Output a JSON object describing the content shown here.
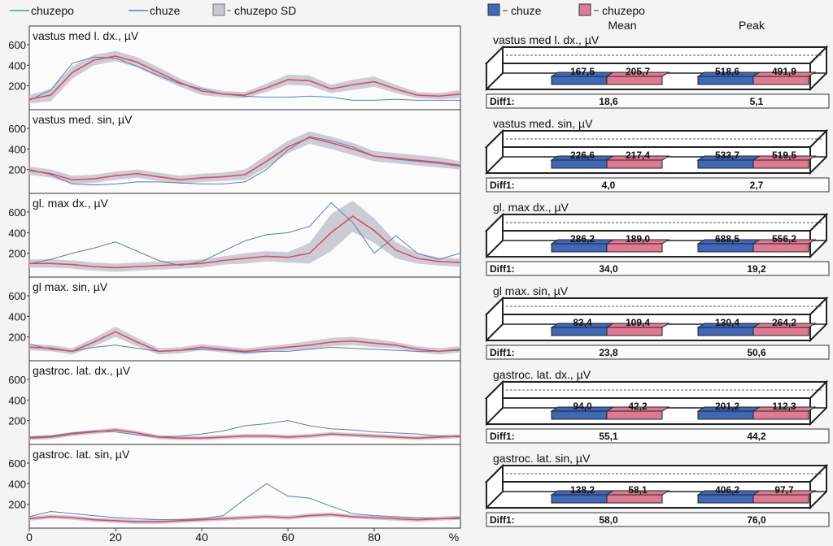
{
  "legend_left": [
    {
      "label": "chuzepo",
      "color": "#3aa67a",
      "kind": "line"
    },
    {
      "label": "chuze",
      "color": "#5a7fa8",
      "kind": "line"
    },
    {
      "label": "chuzepo SD",
      "color": "#c7c7cf",
      "kind": "box"
    }
  ],
  "legend_right": [
    {
      "label": "chuze",
      "color": "#3f68b8"
    },
    {
      "label": "chuzepo",
      "color": "#e07a94"
    }
  ],
  "column_headers": {
    "mean": "Mean",
    "peak": "Peak"
  },
  "x_axis": {
    "ticks": [
      "0",
      "20",
      "40",
      "60",
      "80"
    ],
    "unit": "%"
  },
  "y_ticks": [
    "600",
    "400",
    "200"
  ],
  "colors": {
    "chuze": "#5a7fa8",
    "chuzepo": "#d64f61",
    "sd_band": "#c3c3cc",
    "bar_chuze": "#3f68b8",
    "bar_chuzepo": "#e07a94"
  },
  "chart_data": [
    {
      "type": "line",
      "title": "vastus med l. dx., µV",
      "x": [
        0,
        5,
        10,
        15,
        20,
        25,
        30,
        35,
        40,
        45,
        50,
        55,
        60,
        65,
        70,
        75,
        80,
        85,
        90,
        95,
        100
      ],
      "ylim": [
        0,
        750
      ],
      "series": [
        {
          "name": "chuze",
          "values": [
            60,
            160,
            420,
            480,
            470,
            390,
            300,
            220,
            170,
            120,
            100,
            90,
            90,
            100,
            90,
            60,
            60,
            70,
            60,
            60,
            60
          ]
        },
        {
          "name": "chuzepo",
          "values": [
            70,
            110,
            330,
            450,
            490,
            430,
            330,
            230,
            150,
            120,
            110,
            180,
            260,
            250,
            170,
            210,
            240,
            170,
            110,
            100,
            120
          ]
        }
      ],
      "sd": [
        40,
        60,
        60,
        50,
        50,
        50,
        50,
        40,
        40,
        30,
        30,
        40,
        50,
        50,
        40,
        50,
        50,
        40,
        30,
        30,
        40
      ],
      "summary": {
        "mean_chuze": "167,5",
        "mean_chuzepo": "205,7",
        "peak_chuze": "518,6",
        "peak_chuzepo": "491,9",
        "diff_label": "Diff1:",
        "diff_mean": "18,6",
        "diff_peak": "5,1"
      }
    },
    {
      "type": "line",
      "title": "vastus med. sin, µV",
      "x": [
        0,
        5,
        10,
        15,
        20,
        25,
        30,
        35,
        40,
        45,
        50,
        55,
        60,
        65,
        70,
        75,
        80,
        85,
        90,
        95,
        100
      ],
      "ylim": [
        0,
        750
      ],
      "series": [
        {
          "name": "chuze",
          "values": [
            200,
            150,
            60,
            50,
            60,
            80,
            80,
            70,
            60,
            60,
            80,
            200,
            390,
            520,
            480,
            420,
            330,
            300,
            280,
            260,
            230
          ]
        },
        {
          "name": "chuzepo",
          "values": [
            190,
            160,
            100,
            110,
            140,
            160,
            130,
            100,
            120,
            130,
            150,
            280,
            420,
            510,
            460,
            400,
            330,
            310,
            290,
            270,
            240
          ]
        }
      ],
      "sd": [
        40,
        40,
        40,
        40,
        40,
        40,
        40,
        40,
        40,
        40,
        50,
        60,
        60,
        60,
        60,
        60,
        50,
        50,
        50,
        50,
        40
      ],
      "summary": {
        "mean_chuze": "226,6",
        "mean_chuzepo": "217,4",
        "peak_chuze": "533,7",
        "peak_chuzepo": "519,5",
        "diff_label": "Diff1:",
        "diff_mean": "4,0",
        "diff_peak": "2,7"
      }
    },
    {
      "type": "line",
      "title": "gl. max dx., µV",
      "x": [
        0,
        5,
        10,
        15,
        20,
        25,
        30,
        35,
        40,
        45,
        50,
        55,
        60,
        65,
        70,
        75,
        80,
        85,
        90,
        95,
        100
      ],
      "ylim": [
        0,
        750
      ],
      "series": [
        {
          "name": "chuze",
          "values": [
            100,
            140,
            200,
            250,
            310,
            220,
            130,
            80,
            120,
            220,
            320,
            380,
            400,
            460,
            690,
            500,
            200,
            370,
            200,
            140,
            200
          ]
        },
        {
          "name": "chuzepo",
          "values": [
            100,
            100,
            90,
            70,
            60,
            70,
            80,
            90,
            100,
            130,
            150,
            170,
            160,
            200,
            400,
            560,
            420,
            230,
            150,
            120,
            110
          ]
        }
      ],
      "sd": [
        40,
        40,
        40,
        40,
        40,
        40,
        40,
        40,
        40,
        40,
        50,
        50,
        50,
        100,
        180,
        150,
        120,
        80,
        50,
        40,
        40
      ]
    },
    {
      "type": "line",
      "title": "gl max. sin, µV",
      "x": [
        0,
        5,
        10,
        15,
        20,
        25,
        30,
        35,
        40,
        45,
        50,
        55,
        60,
        65,
        70,
        75,
        80,
        85,
        90,
        95,
        100
      ],
      "ylim": [
        0,
        750
      ],
      "series": [
        {
          "name": "chuze",
          "values": [
            130,
            80,
            60,
            100,
            120,
            90,
            60,
            70,
            80,
            70,
            50,
            60,
            60,
            80,
            100,
            90,
            80,
            70,
            60,
            60,
            70
          ]
        },
        {
          "name": "chuzepo",
          "values": [
            100,
            90,
            60,
            150,
            250,
            150,
            60,
            70,
            100,
            80,
            60,
            80,
            100,
            120,
            150,
            160,
            140,
            120,
            80,
            60,
            80
          ]
        }
      ],
      "sd": [
        30,
        30,
        30,
        40,
        50,
        40,
        30,
        30,
        30,
        30,
        30,
        30,
        30,
        40,
        40,
        40,
        40,
        30,
        30,
        30,
        30
      ],
      "summary": {
        "mean_chuze": "83,4",
        "mean_chuzepo": "109,4",
        "peak_chuze": "130,4",
        "peak_chuzepo": "264,2",
        "diff_label": "Diff1:",
        "diff_mean": "23,8",
        "diff_peak": "50,6"
      }
    },
    {
      "type": "line",
      "title": "gastroc. lat. dx., µV",
      "x": [
        0,
        5,
        10,
        15,
        20,
        25,
        30,
        35,
        40,
        45,
        50,
        55,
        60,
        65,
        70,
        75,
        80,
        85,
        90,
        95,
        100
      ],
      "ylim": [
        0,
        750
      ],
      "series": [
        {
          "name": "chuze",
          "values": [
            40,
            50,
            80,
            100,
            90,
            60,
            40,
            50,
            70,
            100,
            150,
            170,
            200,
            150,
            120,
            110,
            90,
            80,
            70,
            50,
            40
          ]
        },
        {
          "name": "chuzepo",
          "values": [
            30,
            40,
            70,
            90,
            110,
            80,
            40,
            30,
            30,
            40,
            50,
            50,
            40,
            50,
            70,
            60,
            50,
            40,
            30,
            40,
            50
          ]
        }
      ],
      "sd": [
        20,
        20,
        20,
        20,
        20,
        20,
        20,
        20,
        20,
        20,
        20,
        20,
        20,
        20,
        20,
        20,
        20,
        20,
        20,
        20,
        20
      ],
      "summary": {
        "mean_chuze": "94,0",
        "mean_chuzepo": "42,2",
        "peak_chuze": "201,2",
        "peak_chuzepo": "112,3",
        "diff_label": "Diff1:",
        "diff_mean": "55,1",
        "diff_peak": "44,2"
      }
    },
    {
      "type": "line",
      "title": "gastroc. lat. sin, µV",
      "x": [
        0,
        5,
        10,
        15,
        20,
        25,
        30,
        35,
        40,
        45,
        50,
        55,
        60,
        65,
        70,
        75,
        80,
        85,
        90,
        95,
        100
      ],
      "ylim": [
        0,
        750
      ],
      "series": [
        {
          "name": "chuze",
          "values": [
            80,
            130,
            110,
            90,
            70,
            60,
            50,
            50,
            60,
            90,
            250,
            400,
            280,
            260,
            180,
            110,
            90,
            80,
            70,
            60,
            60
          ]
        },
        {
          "name": "chuzepo",
          "values": [
            60,
            80,
            70,
            50,
            40,
            30,
            30,
            40,
            50,
            60,
            70,
            80,
            70,
            90,
            100,
            80,
            70,
            60,
            50,
            60,
            70
          ]
        }
      ],
      "sd": [
        20,
        20,
        20,
        20,
        20,
        20,
        20,
        20,
        20,
        20,
        20,
        20,
        20,
        20,
        20,
        20,
        20,
        20,
        20,
        20,
        20
      ],
      "summary": {
        "mean_chuze": "138,2",
        "mean_chuzepo": "58,1",
        "peak_chuze": "406,2",
        "peak_chuzepo": "97,7",
        "diff_label": "Diff1:",
        "diff_mean": "58,0",
        "diff_peak": "76,0"
      }
    }
  ],
  "panel3_summary": {
    "mean_chuze": "286,2",
    "mean_chuzepo": "189,0",
    "peak_chuze": "688,5",
    "peak_chuzepo": "556,2",
    "diff_label": "Diff1:",
    "diff_mean": "34,0",
    "diff_peak": "19,2"
  }
}
